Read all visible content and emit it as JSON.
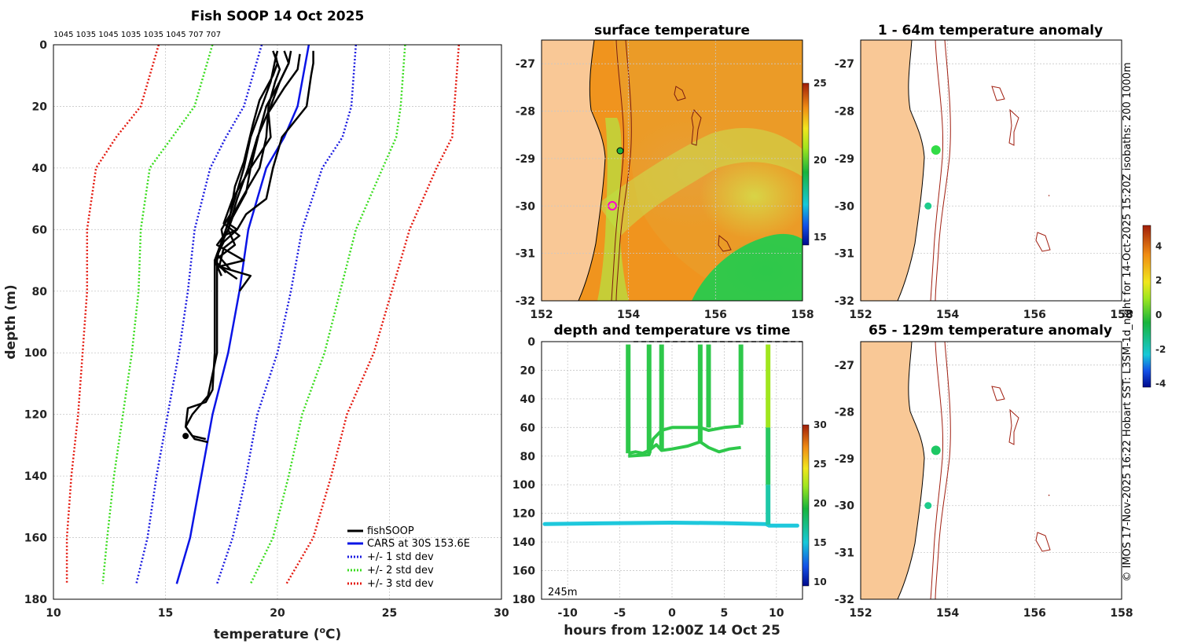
{
  "chart_data": [
    {
      "type": "line",
      "title": "Fish SOOP 14 Oct 2025",
      "subtitle": "1045 1035 1045 1035 1035 1045 707 707",
      "xlabel": "temperature (°C)",
      "xlabel_main": "temperature (",
      "xlabel_sup": "o",
      "xlabel_unit": "C)",
      "ylabel": "depth (m)",
      "xlim": [
        10,
        30
      ],
      "ylim": [
        180,
        0
      ],
      "xticks": [
        "10",
        "15",
        "20",
        "25",
        "30"
      ],
      "yticks": [
        "0",
        "20",
        "40",
        "60",
        "80",
        "100",
        "120",
        "140",
        "160",
        "180"
      ],
      "legend_position": "bottom-right",
      "legend": [
        "fishSOOP",
        "CARS at 30S 153.6E",
        "+/- 1 std dev",
        "+/- 2 std dev",
        "+/- 3 std dev"
      ],
      "cars_mean": {
        "depth": [
          0,
          20,
          30,
          40,
          60,
          80,
          100,
          120,
          140,
          160,
          175
        ],
        "temp": [
          21.4,
          20.9,
          20.3,
          19.5,
          18.7,
          18.3,
          17.8,
          17.1,
          16.6,
          16.1,
          15.5
        ]
      },
      "std1": {
        "depth": [
          0,
          20,
          30,
          40,
          60,
          80,
          100,
          120,
          140,
          160,
          175
        ],
        "values": [
          2.1,
          2.4,
          2.6,
          2.5,
          2.4,
          2.3,
          2.2,
          2.0,
          2.0,
          1.9,
          1.8
        ]
      },
      "std2": {
        "depth": [
          0,
          20,
          30,
          40,
          60,
          80,
          100,
          120,
          140,
          160,
          175
        ],
        "values": [
          4.3,
          4.6,
          5.0,
          5.2,
          4.8,
          4.5,
          4.3,
          4.0,
          3.9,
          3.7,
          3.3
        ]
      },
      "std3": {
        "depth": [
          0,
          20,
          30,
          40,
          60,
          80,
          100,
          120,
          140,
          160,
          175
        ],
        "values": [
          6.7,
          7.0,
          7.5,
          7.6,
          7.2,
          6.8,
          6.5,
          6.0,
          5.8,
          5.5,
          4.9
        ]
      },
      "profiles": [
        {
          "depth": [
            2,
            6,
            10,
            20,
            30,
            40,
            50,
            55,
            60,
            62,
            65,
            70,
            72,
            75,
            80
          ],
          "temp": [
            21.6,
            21.6,
            21.5,
            21.3,
            20.2,
            19.8,
            19.5,
            18.6,
            18.2,
            17.6,
            17.3,
            18.5,
            17.4,
            18.8,
            18.3
          ]
        },
        {
          "depth": [
            2,
            8,
            12,
            20,
            30,
            40,
            50,
            58,
            60,
            64,
            68,
            73
          ],
          "temp": [
            19.8,
            20.1,
            19.9,
            19.6,
            19.5,
            19.2,
            18.4,
            17.8,
            18.2,
            17.6,
            17.3,
            17.9
          ]
        },
        {
          "depth": [
            3,
            8,
            14,
            22,
            30,
            40,
            48,
            56,
            60,
            65,
            70,
            75
          ],
          "temp": [
            21.0,
            20.9,
            20.3,
            19.6,
            19.7,
            18.8,
            18.6,
            18.0,
            17.8,
            18.1,
            17.2,
            17.5
          ]
        },
        {
          "depth": [
            2,
            6,
            12,
            20,
            28,
            40,
            50,
            58,
            62,
            66,
            72,
            76
          ],
          "temp": [
            20.3,
            20.5,
            20.1,
            19.5,
            19.2,
            18.8,
            18.0,
            17.6,
            18.3,
            17.6,
            17.4,
            18.2
          ]
        },
        {
          "depth": [
            3,
            6,
            10,
            18,
            26,
            38,
            46,
            55,
            60,
            64,
            70,
            74
          ],
          "temp": [
            19.9,
            20.0,
            19.8,
            19.2,
            18.9,
            18.5,
            18.1,
            17.9,
            17.5,
            17.6,
            17.2,
            17.7
          ]
        },
        {
          "depth": [
            2,
            5,
            12,
            20,
            30,
            40,
            50,
            60,
            66,
            70,
            100,
            112,
            116,
            118,
            124,
            127,
            128
          ],
          "temp": [
            20.0,
            19.9,
            19.7,
            19.3,
            18.8,
            18.5,
            18.1,
            17.7,
            17.4,
            17.2,
            17.2,
            17.1,
            16.8,
            16.0,
            15.9,
            16.2,
            16.8
          ]
        },
        {
          "depth": [
            2,
            6,
            12,
            20,
            30,
            40,
            50,
            60,
            66,
            70,
            100,
            114,
            120,
            124,
            128,
            129
          ],
          "temp": [
            20.6,
            20.5,
            20.1,
            19.7,
            19.1,
            18.7,
            18.2,
            17.8,
            17.4,
            17.3,
            17.3,
            16.9,
            16.2,
            15.9,
            16.3,
            16.9
          ]
        }
      ]
    },
    {
      "type": "heatmap",
      "title": "surface temperature",
      "xlim": [
        152,
        158
      ],
      "ylim": [
        -32,
        -26.5
      ],
      "xticks": [
        "152",
        "154",
        "156",
        "158"
      ],
      "yticks": [
        "-27",
        "-28",
        "-29",
        "-30",
        "-31",
        "-32"
      ],
      "colorbar": {
        "min": 14.5,
        "max": 25,
        "ticks": [
          "25",
          "20",
          "15"
        ]
      },
      "markers": [
        {
          "lon": 153.7,
          "lat": -28.8,
          "type": "green-dot"
        },
        {
          "lon": 153.55,
          "lat": -30.0,
          "type": "magenta-circle"
        }
      ]
    },
    {
      "type": "scatter",
      "title": "depth and temperature vs time",
      "xlabel": "hours from 12:00Z 14 Oct 25",
      "annotation": "245m",
      "xlim": [
        -12.5,
        12.5
      ],
      "ylim": [
        180,
        0
      ],
      "xticks": [
        "-10",
        "-5",
        "0",
        "5",
        "10"
      ],
      "yticks": [
        "0",
        "20",
        "40",
        "60",
        "80",
        "100",
        "120",
        "140",
        "160",
        "180"
      ],
      "colorbar": {
        "min": 9.5,
        "max": 30,
        "ticks": [
          "30",
          "25",
          "20",
          "15",
          "10"
        ]
      },
      "casts": [
        {
          "hours": 9.2,
          "max_depth": 128
        },
        {
          "hours": -4.2,
          "max_depth": 78
        },
        {
          "hours": -2.2,
          "max_depth": 78
        },
        {
          "hours": -1.0,
          "max_depth": 76
        },
        {
          "hours": 2.7,
          "max_depth": 70
        },
        {
          "hours": 3.5,
          "max_depth": 60
        },
        {
          "hours": 6.6,
          "max_depth": 58
        }
      ]
    },
    {
      "type": "heatmap",
      "title": "1 - 64m temperature anomaly",
      "xlim": [
        152,
        158
      ],
      "ylim": [
        -32,
        -26.5
      ],
      "xticks": [
        "152",
        "154",
        "156",
        "158"
      ],
      "yticks": [
        "-27",
        "-28",
        "-29",
        "-30",
        "-31",
        "-32"
      ],
      "points": [
        {
          "lon": 153.73,
          "lat": -28.82,
          "anomaly": 0.1
        },
        {
          "lon": 153.55,
          "lat": -30.0,
          "anomaly": -0.6
        }
      ]
    },
    {
      "type": "heatmap",
      "title": "65 - 129m temperature anomaly",
      "xlim": [
        152,
        158
      ],
      "ylim": [
        -32,
        -26.5
      ],
      "xticks": [
        "152",
        "154",
        "156",
        "158"
      ],
      "yticks": [
        "-27",
        "-28",
        "-29",
        "-30",
        "-31",
        "-32"
      ],
      "points": [
        {
          "lon": 153.73,
          "lat": -28.82,
          "anomaly": 0.0
        },
        {
          "lon": 153.55,
          "lat": -30.0,
          "anomaly": -0.6
        }
      ],
      "colorbar": {
        "min": -4.2,
        "max": 5.2,
        "ticks": [
          "4",
          "2",
          "0",
          "-2",
          "-4"
        ]
      }
    }
  ],
  "side_note": "© IMOS 17-Nov-2025 16:22 Hobart SST: L3SM-1d_night for 14-Oct-2025 15:20Z isobaths: 200  1000m",
  "colors": {
    "land": "#f9c896",
    "fishsoop": "#000000",
    "cars": "#0a14e6",
    "std1": "#1a1ae0",
    "std2": "#3adc1e",
    "std3": "#e41a10",
    "isobath": "#a01e10",
    "magenta": "#ff00cc"
  }
}
